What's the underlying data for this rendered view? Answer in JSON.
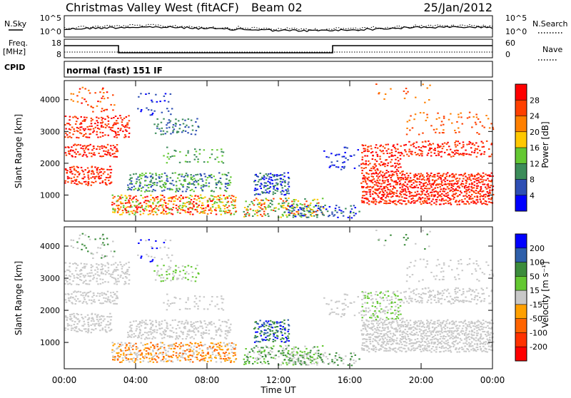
{
  "header": {
    "station": "Christmas Valley West (fitACF)",
    "beam": "Beam 02",
    "date": "25/Jan/2012"
  },
  "top_panels": {
    "nsky_label": "N.Sky",
    "nsearch_label": "N.Search",
    "noise_ticks_left": [
      "10^5",
      "10^0"
    ],
    "noise_ticks_right": [
      "10^5",
      "10^0"
    ],
    "freq_label": "Freq.",
    "freq_unit": "[MHz]",
    "freq_ticks": [
      "18",
      "8"
    ],
    "nave_label": "Nave",
    "nave_ticks": [
      "60",
      "0"
    ],
    "cpid_label": "CPID",
    "cpid_text": "normal (fast) 151 IF"
  },
  "colors": {
    "power_scale": [
      "#0000ff",
      "#2e4fb4",
      "#3c8c5a",
      "#64c832",
      "#ffc800",
      "#ff8000",
      "#ff4000",
      "#ff0000"
    ],
    "velocity_scale": [
      "#0000ff",
      "#2e5faa",
      "#3c8c3c",
      "#64c832",
      "#c8c8c8",
      "#ffa000",
      "#ff6400",
      "#ff3200",
      "#ff0000"
    ],
    "ground_scatter": "#c8c8c8"
  },
  "chart_data": [
    {
      "type": "heatmap",
      "title": "Power",
      "xlabel": "Time UT",
      "ylabel": "Slant Range [km]",
      "x_ticks": [
        "00:00",
        "04:00",
        "08:00",
        "12:00",
        "16:00",
        "20:00",
        "00:00"
      ],
      "xlim": [
        0,
        24
      ],
      "y_ticks": [
        1000,
        2000,
        3000,
        4000
      ],
      "ylim": [
        180,
        4600
      ],
      "colorbar_label": "Power [dB]",
      "colorbar_ticks": [
        4,
        8,
        12,
        16,
        20,
        24,
        28
      ],
      "colorbar_range": [
        0,
        32
      ]
    },
    {
      "type": "heatmap",
      "title": "Velocity",
      "xlabel": "Time UT",
      "ylabel": "Slant Range [km]",
      "x_ticks": [
        "00:00",
        "04:00",
        "08:00",
        "12:00",
        "16:00",
        "20:00",
        "00:00"
      ],
      "xlim": [
        0,
        24
      ],
      "y_ticks": [
        1000,
        2000,
        3000,
        4000
      ],
      "ylim": [
        180,
        4600
      ],
      "colorbar_label": "Velocity [m s⁻¹]",
      "colorbar_ticks": [
        "200",
        "100",
        "50",
        "15",
        "-15",
        "-50",
        "-100",
        "-200"
      ],
      "colorbar_range": [
        -250,
        250
      ]
    }
  ]
}
